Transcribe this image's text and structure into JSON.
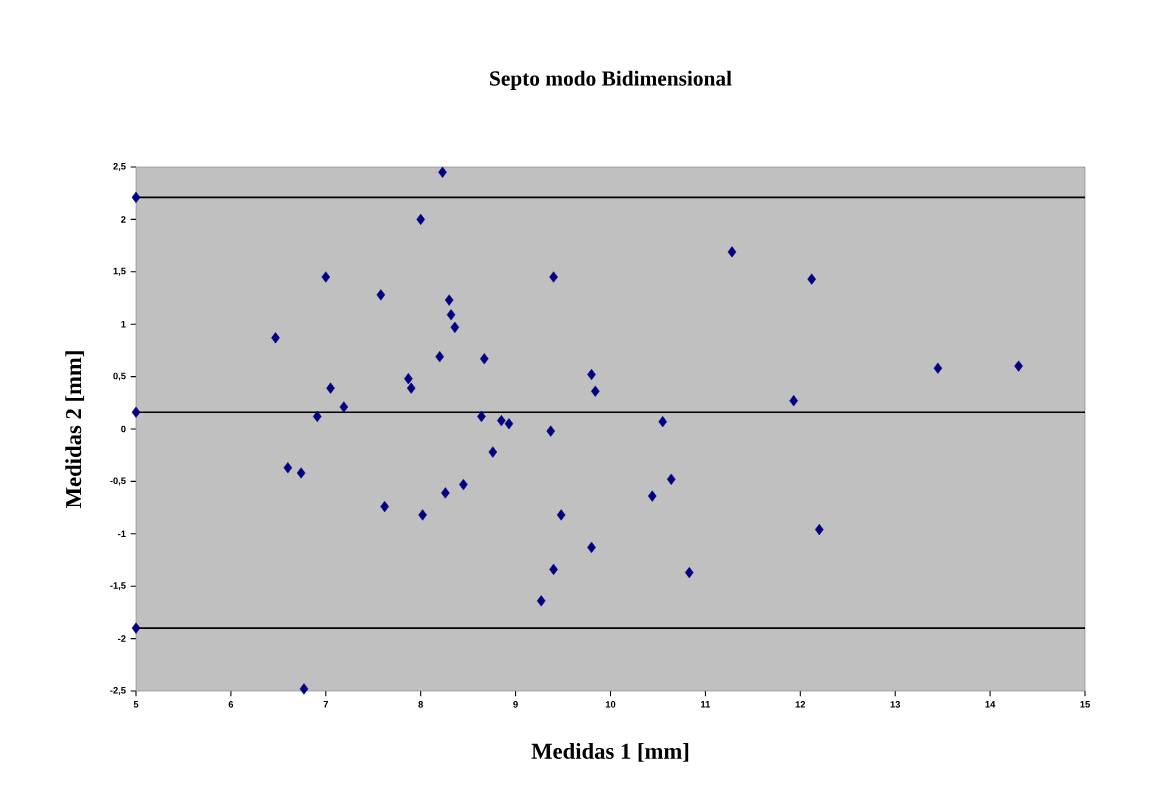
{
  "chart_data": {
    "type": "scatter",
    "title": "Septo modo Bidimensional",
    "xlabel": "Medidas 1 [mm]",
    "ylabel": "Medidas 2 [mm]",
    "xlim": [
      5,
      15
    ],
    "xticks": [
      5,
      6,
      7,
      8,
      9,
      10,
      11,
      12,
      13,
      14,
      15
    ],
    "ylim": [
      -2.5,
      2.5
    ],
    "yticks": [
      {
        "value": -2.5,
        "label": "-2,5"
      },
      -2,
      {
        "value": -1.5,
        "label": "-1,5"
      },
      -1,
      {
        "value": -0.5,
        "label": "-0,5"
      },
      0,
      {
        "value": 0.5,
        "label": "0,5"
      },
      1,
      {
        "value": 1.5,
        "label": "1,5"
      },
      2,
      {
        "value": 2.5,
        "label": "2,5"
      }
    ],
    "marker": "diamond",
    "grid": false,
    "ref_lines": [
      {
        "axis": "y",
        "value": 2.21,
        "color": "#000000"
      },
      {
        "axis": "y",
        "value": 0.16,
        "color": "#000000"
      },
      {
        "axis": "y",
        "value": -1.9,
        "color": "#000000"
      }
    ],
    "series": [
      {
        "color": "#000080",
        "x": [
          5,
          5,
          5,
          8.23,
          8.0,
          7.0,
          7.58,
          8.3,
          8.32,
          8.36,
          6.47,
          8.2,
          8.67,
          7.87,
          7.9,
          7.05,
          7.19,
          6.91,
          8.64,
          8.85,
          8.93,
          8.76,
          6.6,
          6.74,
          7.62,
          8.02,
          8.26,
          8.45,
          6.77,
          9.37,
          9.4,
          9.8,
          9.84,
          9.48,
          9.8,
          9.4,
          9.27,
          10.55,
          10.64,
          10.44,
          10.83,
          11.28,
          12.12,
          11.93,
          12.2,
          13.45,
          14.3
        ],
        "values": [
          2.21,
          0.16,
          -1.9,
          2.45,
          2.0,
          1.45,
          1.28,
          1.23,
          1.09,
          0.97,
          0.87,
          0.69,
          0.67,
          0.48,
          0.39,
          0.39,
          0.21,
          0.12,
          0.12,
          0.08,
          0.05,
          -0.22,
          -0.37,
          -0.42,
          -0.74,
          -0.82,
          -0.61,
          -0.53,
          -2.48,
          -0.02,
          1.45,
          0.52,
          0.36,
          -0.82,
          -1.13,
          -1.34,
          -1.64,
          0.07,
          -0.48,
          -0.64,
          -1.37,
          1.69,
          1.43,
          0.27,
          -0.96,
          0.58,
          0.6
        ]
      }
    ]
  }
}
